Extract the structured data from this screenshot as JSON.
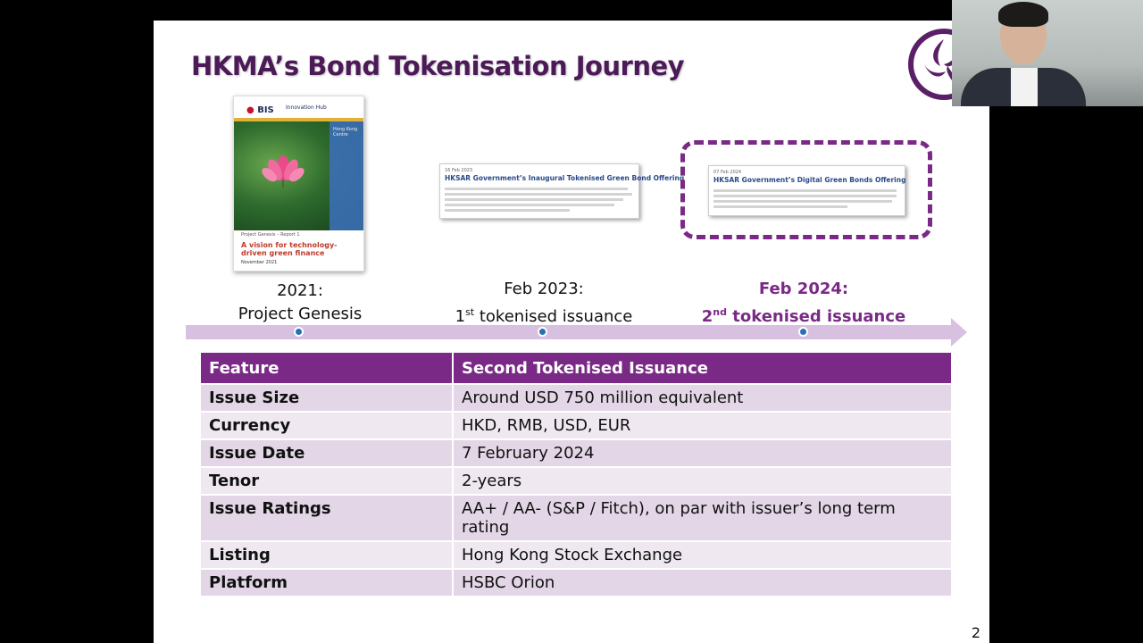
{
  "slide": {
    "title": "HKMA’s Bond Tokenisation Journey",
    "page_number": "2"
  },
  "report": {
    "logo": "BIS",
    "hub": "Innovation Hub",
    "series": "Project Genesis – Report 1",
    "title": "A vision for technology-driven green finance",
    "date": "November 2021",
    "sidebar": "Hong Kong Centre"
  },
  "clip1": {
    "date": "16 Feb 2023",
    "headline": "HKSAR Government’s Inaugural Tokenised Green Bond Offering"
  },
  "clip2": {
    "date": "07 Feb 2024",
    "headline": "HKSAR Government’s Digital Green Bonds Offering"
  },
  "timeline": [
    {
      "line1": "2021:",
      "line2": "Project Genesis"
    },
    {
      "line1": "Feb 2023:",
      "line2_pre": "1",
      "line2_sup": "st",
      "line2_post": " tokenised issuance"
    },
    {
      "line1": "Feb 2024:",
      "line2_pre": "2",
      "line2_sup": "nd",
      "line2_post": " tokenised issuance"
    }
  ],
  "table": {
    "headers": [
      "Feature",
      "Second Tokenised Issuance"
    ],
    "rows": [
      [
        "Issue Size",
        "Around USD 750 million equivalent"
      ],
      [
        "Currency",
        "HKD, RMB, USD, EUR"
      ],
      [
        "Issue Date",
        "7 February 2024"
      ],
      [
        "Tenor",
        "2-years"
      ],
      [
        "Issue Ratings",
        "AA+ / AA- (S&P / Fitch), on par with issuer’s long term rating"
      ],
      [
        "Listing",
        "Hong Kong Stock Exchange"
      ],
      [
        "Platform",
        "HSBC Orion"
      ]
    ]
  },
  "colors": {
    "accent": "#7a2a86",
    "title": "#4b1a57",
    "row_odd": "#e3d6e6",
    "row_even": "#efe8f1"
  }
}
